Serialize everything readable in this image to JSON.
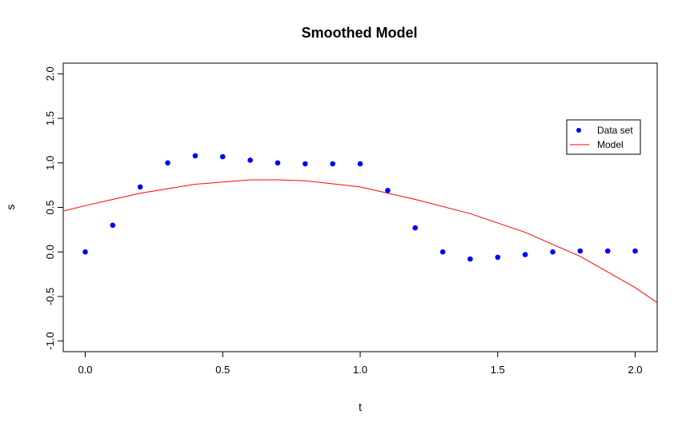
{
  "chart_data": {
    "type": "scatter",
    "title": "Smoothed Model",
    "xlabel": "t",
    "ylabel": "s",
    "xlim": [
      -0.08,
      2.08
    ],
    "ylim": [
      -1.12,
      2.12
    ],
    "xticks": [
      "0.0",
      "0.5",
      "1.0",
      "1.5",
      "2.0"
    ],
    "yticks": [
      "-1.0",
      "-0.5",
      "0.0",
      "0.5",
      "1.0",
      "1.5",
      "2.0"
    ],
    "grid": false,
    "legend_position": "right",
    "series": [
      {
        "name": "Data set",
        "kind": "points",
        "color": "#0000ff",
        "x": [
          0.0,
          0.1,
          0.2,
          0.3,
          0.4,
          0.5,
          0.6,
          0.7,
          0.8,
          0.9,
          1.0,
          1.1,
          1.2,
          1.3,
          1.4,
          1.5,
          1.6,
          1.7,
          1.8,
          1.9,
          2.0
        ],
        "y": [
          0.0,
          0.3,
          0.73,
          1.0,
          1.08,
          1.07,
          1.03,
          1.0,
          0.99,
          0.99,
          0.99,
          0.69,
          0.27,
          0.0,
          -0.08,
          -0.06,
          -0.03,
          0.0,
          0.01,
          0.01,
          0.01
        ]
      },
      {
        "name": "Model",
        "kind": "line",
        "color": "#ff0000",
        "x": [
          -0.08,
          0.0,
          0.2,
          0.4,
          0.6,
          0.7,
          0.8,
          1.0,
          1.2,
          1.4,
          1.6,
          1.8,
          2.0,
          2.08
        ],
        "y": [
          0.46,
          0.52,
          0.66,
          0.76,
          0.81,
          0.81,
          0.8,
          0.73,
          0.59,
          0.43,
          0.22,
          -0.05,
          -0.4,
          -0.57
        ]
      }
    ]
  }
}
